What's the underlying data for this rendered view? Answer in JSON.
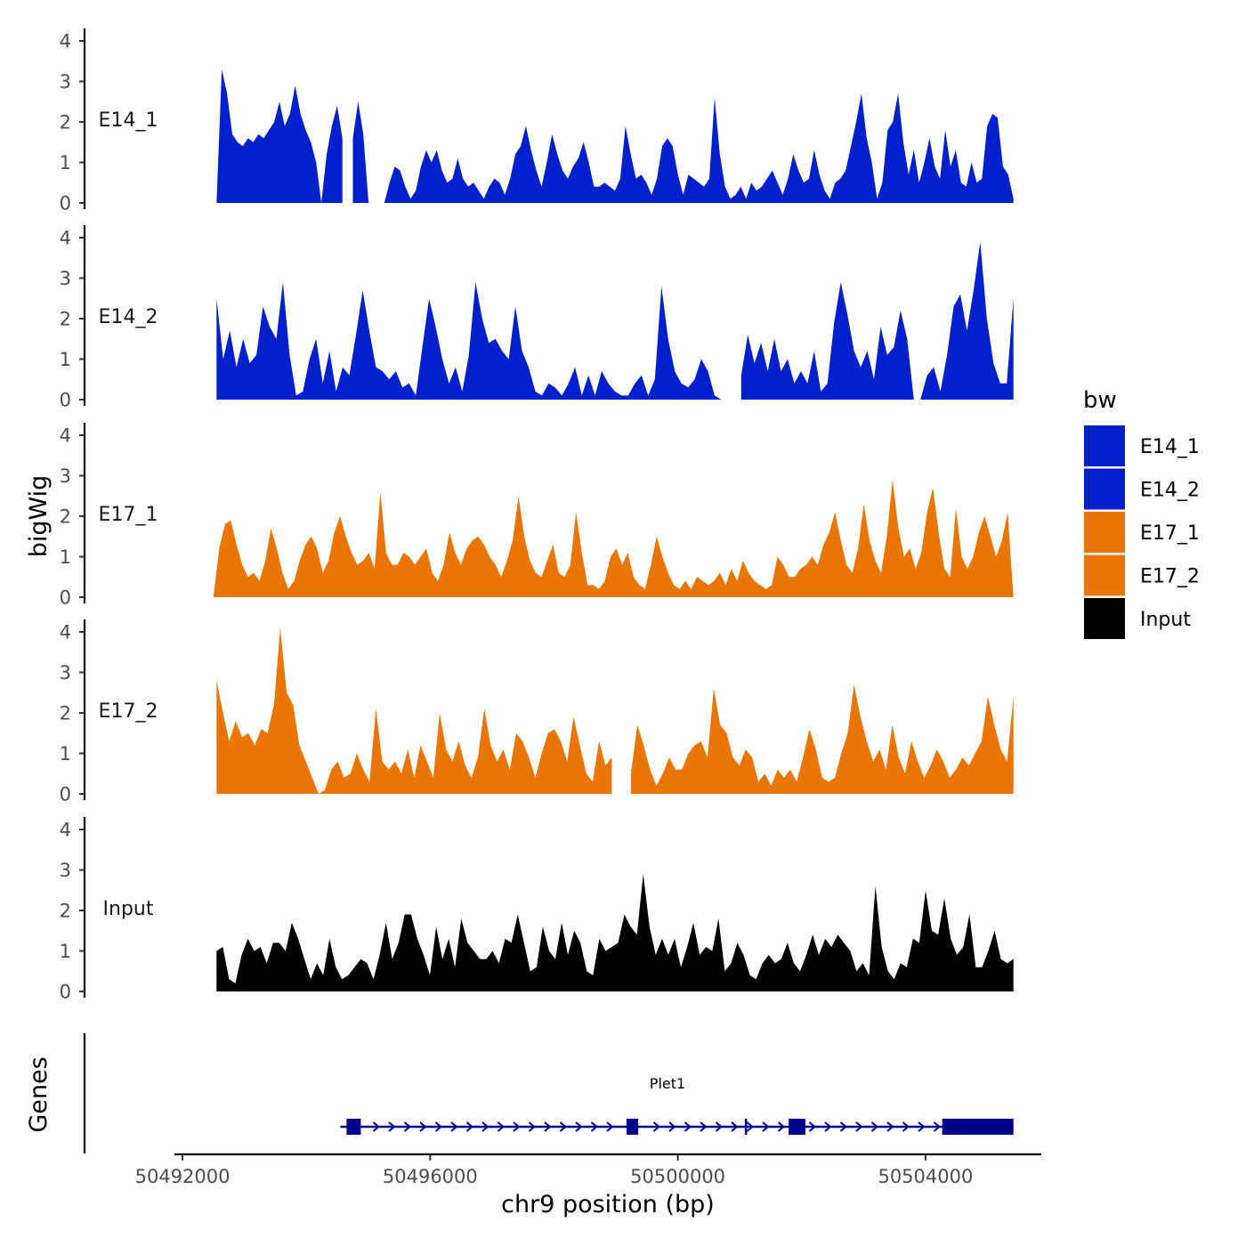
{
  "chart_data": {
    "type": "area",
    "xlabel": "chr9 position (bp)",
    "ylabel": "bigWig",
    "genes_label": "Genes",
    "xlim": [
      50491870,
      50505870
    ],
    "ylim": [
      0,
      4.3
    ],
    "x_ticks": [
      50492000,
      50496000,
      50500000,
      50504000
    ],
    "x_tick_labels": [
      "50492000",
      "50496000",
      "50500000",
      "50504000"
    ],
    "y_ticks": [
      0,
      1,
      2,
      3,
      4
    ],
    "y_tick_labels": [
      "0",
      "1",
      "2",
      "3",
      "4"
    ],
    "legend": {
      "title": "bw",
      "entries": [
        {
          "label": "E14_1",
          "color": "#0020cc"
        },
        {
          "label": "E14_2",
          "color": "#0020cc"
        },
        {
          "label": "E17_1",
          "color": "#e87504"
        },
        {
          "label": "E17_2",
          "color": "#e87504"
        },
        {
          "label": "Input",
          "color": "#000000"
        }
      ]
    },
    "series": [
      {
        "name": "E14_1",
        "color": "#0020cc",
        "x_start": 50492550,
        "x_end": 50505420,
        "gaps": [
          [
            50494650,
            50494750
          ]
        ],
        "values": [
          0,
          3.3,
          2.7,
          1.7,
          1.5,
          1.4,
          1.6,
          1.5,
          1.7,
          1.6,
          1.8,
          2.0,
          2.5,
          1.9,
          2.2,
          2.9,
          2.2,
          1.8,
          1.5,
          1.0,
          0,
          1.2,
          1.9,
          2.4,
          1.6,
          1.2,
          1.6,
          2.5,
          1.7,
          0,
          0,
          0,
          0,
          0.5,
          0.9,
          0.8,
          0.4,
          0.1,
          0.3,
          0.9,
          1.3,
          1.0,
          1.3,
          0.8,
          0.5,
          0.6,
          1.1,
          0.6,
          0.4,
          0.5,
          0.3,
          0.1,
          0.4,
          0.6,
          0.5,
          0.2,
          0.6,
          1.2,
          1.4,
          1.9,
          1.3,
          0.8,
          0.4,
          1.0,
          1.7,
          1.2,
          0.8,
          0.6,
          0.9,
          1.1,
          1.5,
          1.0,
          0.4,
          0.4,
          0.5,
          0.4,
          0.3,
          0.6,
          1.9,
          1.2,
          0.6,
          0.7,
          0.5,
          0.2,
          0.6,
          1.4,
          1.6,
          1.4,
          0.7,
          0.2,
          0.7,
          0.6,
          0.5,
          0.4,
          0.6,
          2.6,
          1.2,
          0.4,
          0.1,
          0.2,
          0.4,
          0.1,
          0.5,
          0.3,
          0.4,
          0.6,
          0.8,
          0.5,
          0.2,
          0.6,
          1.2,
          0.8,
          0.5,
          0.6,
          1.3,
          0.7,
          0.3,
          0.1,
          0.5,
          0.6,
          0.8,
          1.4,
          2.0,
          2.7,
          1.6,
          1.0,
          0.1,
          0.5,
          1.8,
          2.0,
          2.7,
          1.5,
          0.7,
          1.3,
          0.5,
          1.0,
          1.6,
          0.9,
          0.6,
          1.8,
          0.9,
          1.3,
          0.5,
          0.4,
          1.0,
          0.5,
          0.6,
          1.9,
          2.2,
          2.1,
          0.9,
          0.7,
          0.1
        ],
        "label": "E14_1"
      },
      {
        "name": "E14_2",
        "color": "#0020cc",
        "x_start": 50492550,
        "x_end": 50505420,
        "gaps": [
          [
            50500830,
            50501020
          ]
        ],
        "values": [
          2.5,
          1.0,
          1.7,
          0.8,
          1.5,
          0.9,
          1.1,
          2.3,
          1.8,
          1.5,
          2.9,
          1.1,
          0.1,
          0.2,
          1.0,
          1.5,
          0.4,
          1.2,
          0.2,
          0.8,
          0.6,
          1.6,
          2.7,
          1.7,
          0.8,
          0.7,
          0.5,
          0.7,
          0.3,
          0.4,
          0.1,
          1.3,
          2.5,
          1.8,
          1.0,
          0.4,
          0.8,
          0.2,
          1.1,
          2.9,
          2.0,
          1.4,
          1.5,
          1.2,
          1.0,
          2.3,
          1.2,
          0.8,
          0.2,
          0.1,
          0.4,
          0.3,
          0.1,
          0.4,
          0.8,
          0.1,
          0.6,
          0.1,
          0.7,
          0.4,
          0.2,
          0.1,
          0.1,
          0.4,
          0.6,
          0.1,
          0.5,
          2.8,
          1.5,
          0.7,
          0.4,
          0.3,
          0.5,
          1.0,
          0.7,
          0.1,
          0,
          0,
          0.3,
          0.6,
          1.6,
          0.9,
          1.4,
          0.7,
          1.5,
          0.7,
          1.0,
          0.4,
          0.7,
          0.4,
          1.2,
          0.2,
          0.4,
          1.9,
          2.9,
          2.1,
          1.2,
          0.8,
          1.2,
          0.5,
          1.8,
          1.1,
          1.3,
          2.2,
          1.5,
          0,
          0,
          0.6,
          0.8,
          0.2,
          1.1,
          2.3,
          2.6,
          1.7,
          2.7,
          3.9,
          2.0,
          0.9,
          0.4,
          0.4,
          2.5
        ],
        "label": "E14_2"
      },
      {
        "name": "E17_1",
        "color": "#e87504",
        "x_start": 50492500,
        "x_end": 50505420,
        "gaps": [],
        "values": [
          0,
          1.2,
          1.8,
          1.9,
          1.3,
          0.8,
          0.5,
          0.6,
          0.4,
          0.9,
          1.7,
          1.2,
          0.6,
          0.2,
          0.4,
          0.9,
          1.3,
          1.5,
          1.2,
          0.6,
          0.9,
          1.6,
          2.0,
          1.5,
          1.1,
          0.8,
          0.9,
          1.1,
          0.7,
          2.6,
          1.1,
          0.8,
          0.8,
          1.1,
          1.0,
          0.8,
          1.0,
          1.2,
          0.6,
          0.4,
          0.8,
          1.6,
          1.1,
          0.8,
          1.2,
          1.4,
          1.5,
          1.3,
          1.0,
          0.8,
          0.5,
          0.9,
          1.4,
          2.5,
          1.5,
          0.9,
          0.6,
          0.5,
          0.9,
          1.3,
          0.6,
          0.5,
          0.8,
          2.1,
          1.1,
          0.3,
          0.3,
          0.2,
          0.4,
          1.0,
          1.2,
          0.8,
          1.1,
          0.5,
          0.3,
          0.2,
          0.8,
          1.5,
          1.0,
          0.6,
          0.3,
          0.2,
          0.4,
          0.2,
          0.5,
          0.4,
          0.3,
          0.4,
          0.6,
          0.3,
          0.7,
          0.4,
          0.9,
          0.6,
          0.4,
          0.3,
          0.2,
          0.3,
          1.0,
          0.8,
          0.5,
          0.5,
          0.7,
          0.8,
          1.0,
          0.8,
          1.3,
          1.6,
          2.1,
          1.4,
          0.8,
          0.6,
          1.2,
          2.3,
          1.4,
          0.9,
          0.6,
          1.5,
          2.9,
          1.7,
          1.0,
          1.2,
          0.7,
          1.1,
          2.1,
          2.7,
          1.6,
          0.7,
          0.5,
          2.2,
          1.0,
          0.7,
          1.0,
          1.6,
          2.0,
          1.5,
          1.0,
          1.4,
          2.1,
          0
        ]
      },
      {
        "name": "E17_2",
        "color": "#e87504",
        "x_start": 50492550,
        "x_end": 50505420,
        "gaps": [
          [
            50498980,
            50499200
          ]
        ],
        "values": [
          2.8,
          2.0,
          1.3,
          1.8,
          1.4,
          1.5,
          1.2,
          1.6,
          1.5,
          2.2,
          4.1,
          2.5,
          2.2,
          1.2,
          0.8,
          0.4,
          0.0,
          0.1,
          0.6,
          0.8,
          0.4,
          0.5,
          1.0,
          0.6,
          0.3,
          2.1,
          0.8,
          0.6,
          0.8,
          0.5,
          1.1,
          0.4,
          1.2,
          0.8,
          0.4,
          2.0,
          1.1,
          0.8,
          1.3,
          0.7,
          0.4,
          0.9,
          2.1,
          1.2,
          0.8,
          1.1,
          0.6,
          1.5,
          1.3,
          0.9,
          0.4,
          1.0,
          1.5,
          1.6,
          1.3,
          0.8,
          1.9,
          1.2,
          0.5,
          0.3,
          1.3,
          0.7,
          0.9,
          0.4,
          0.3,
          0.5,
          1.7,
          1.2,
          0.6,
          0.2,
          0.5,
          0.9,
          0.6,
          0.6,
          1.0,
          1.2,
          1.3,
          0.9,
          2.6,
          1.7,
          1.5,
          0.9,
          0.7,
          1.1,
          0.9,
          0.3,
          0.5,
          0.2,
          0.6,
          0.4,
          0.6,
          0.3,
          0.9,
          1.6,
          1.1,
          0.4,
          0.3,
          0.4,
          1.0,
          1.5,
          2.7,
          1.9,
          1.3,
          0.8,
          1.1,
          0.6,
          1.7,
          0.9,
          0.5,
          1.3,
          0.8,
          0.4,
          0.7,
          1.1,
          0.8,
          0.4,
          0.6,
          0.9,
          0.7,
          1.0,
          1.3,
          2.4,
          1.7,
          1.1,
          0.8,
          2.4
        ]
      },
      {
        "name": "Input",
        "color": "#000000",
        "x_start": 50492550,
        "x_end": 50505420,
        "gaps": [],
        "values": [
          1.0,
          1.1,
          0.3,
          0.2,
          0.9,
          1.3,
          1.0,
          1.1,
          0.7,
          1.2,
          1.2,
          1.0,
          1.7,
          1.3,
          0.8,
          0.3,
          0.7,
          0.4,
          1.3,
          0.6,
          0.3,
          0.4,
          0.6,
          0.8,
          0.7,
          0.3,
          0.9,
          1.7,
          0.8,
          1.2,
          1.9,
          1.9,
          1.3,
          0.9,
          0.4,
          1.6,
          0.8,
          1.3,
          0.6,
          1.8,
          1.2,
          1.0,
          0.8,
          0.8,
          1.0,
          0.7,
          1.3,
          1.2,
          1.9,
          1.2,
          0.5,
          0.6,
          1.6,
          1.0,
          0.8,
          1.7,
          0.9,
          1.5,
          1.2,
          0.5,
          0.4,
          1.3,
          1.0,
          1.1,
          1.2,
          1.9,
          1.6,
          1.4,
          2.9,
          1.6,
          0.9,
          1.3,
          0.9,
          1.3,
          0.6,
          1.1,
          1.7,
          0.9,
          1.1,
          1.0,
          1.8,
          0.5,
          0.7,
          1.2,
          0.9,
          0.4,
          0.3,
          0.7,
          0.9,
          0.7,
          0.8,
          1.2,
          0.7,
          0.5,
          0.9,
          1.4,
          0.9,
          1.3,
          1.1,
          1.4,
          1.2,
          1.0,
          0.5,
          0.7,
          0.4,
          2.6,
          1.1,
          0.5,
          0.3,
          0.7,
          0.6,
          1.3,
          1.2,
          2.5,
          1.5,
          1.4,
          2.3,
          1.3,
          0.9,
          1.1,
          1.9,
          0.6,
          0.6,
          1.0,
          1.5,
          0.8,
          0.7,
          0.8
        ],
        "label": "Input"
      }
    ],
    "genes": [
      {
        "name": "Plet1",
        "strand": "+",
        "start": 50494550,
        "end": 50505420,
        "exons": [
          [
            50494650,
            50494880
          ],
          [
            50499170,
            50499360
          ],
          [
            50501790,
            50502060
          ],
          [
            50504270,
            50505420
          ]
        ],
        "color": "#00008b"
      }
    ]
  },
  "text": {
    "track_labels": [
      "E14_1",
      "E14_2",
      "E17_1",
      "E17_2",
      "Input"
    ]
  }
}
